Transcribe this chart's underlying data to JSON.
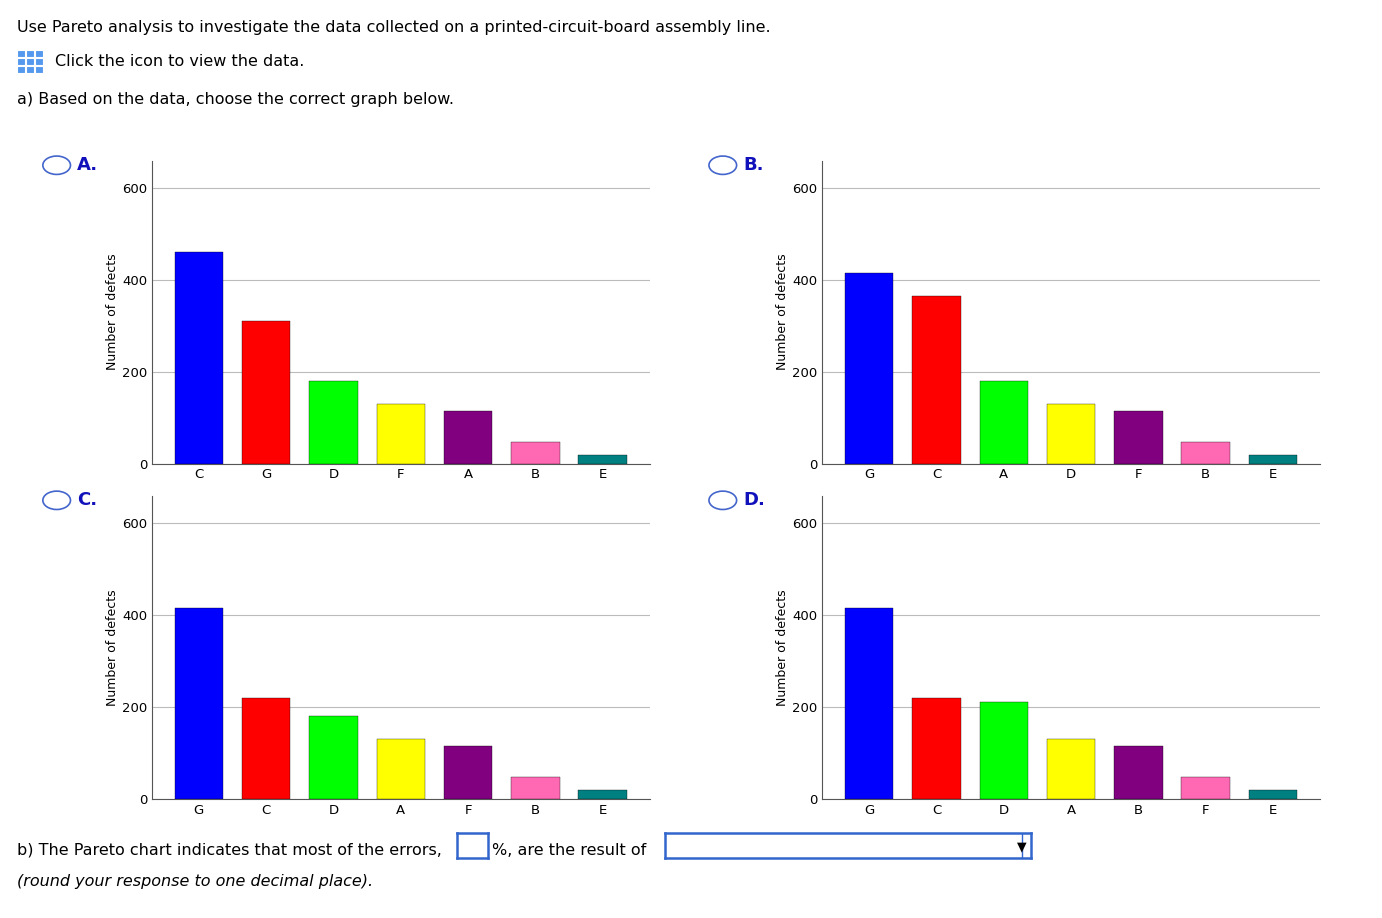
{
  "title_line1": "Use Pareto analysis to investigate the data collected on a printed-circuit-board assembly line.",
  "icon_text": "Click the icon to view the data.",
  "subtitle": "a) Based on the data, choose the correct graph below.",
  "bottom_text_1": "b) The Pareto chart indicates that most of the errors,",
  "bottom_text_2": "%, are the result of",
  "bottom_text_italic": "(round your response to one decimal place).",
  "charts": [
    {
      "label": "A.",
      "categories": [
        "C",
        "G",
        "D",
        "F",
        "A",
        "B",
        "E"
      ],
      "values": [
        460,
        310,
        180,
        130,
        115,
        48,
        18
      ],
      "colors": [
        "#0000FF",
        "#FF0000",
        "#00FF00",
        "#FFFF00",
        "#800080",
        "#FF69B4",
        "#008080"
      ]
    },
    {
      "label": "B.",
      "categories": [
        "G",
        "C",
        "A",
        "D",
        "F",
        "B",
        "E"
      ],
      "values": [
        415,
        365,
        180,
        130,
        115,
        48,
        18
      ],
      "colors": [
        "#0000FF",
        "#FF0000",
        "#00FF00",
        "#FFFF00",
        "#800080",
        "#FF69B4",
        "#008080"
      ]
    },
    {
      "label": "C.",
      "categories": [
        "G",
        "C",
        "D",
        "A",
        "F",
        "B",
        "E"
      ],
      "values": [
        415,
        220,
        180,
        130,
        115,
        48,
        18
      ],
      "colors": [
        "#0000FF",
        "#FF0000",
        "#00FF00",
        "#FFFF00",
        "#800080",
        "#FF69B4",
        "#008080"
      ]
    },
    {
      "label": "D.",
      "categories": [
        "G",
        "C",
        "D",
        "A",
        "B",
        "F",
        "E"
      ],
      "values": [
        415,
        220,
        210,
        130,
        115,
        48,
        18
      ],
      "colors": [
        "#0000FF",
        "#FF0000",
        "#00FF00",
        "#FFFF00",
        "#800080",
        "#FF69B4",
        "#008080"
      ]
    }
  ],
  "ylabel": "Number of defects",
  "ylim": [
    0,
    660
  ],
  "yticks": [
    0,
    200,
    400,
    600
  ],
  "background_color": "#FFFFFF",
  "grid_color": "#BBBBBB",
  "label_color": "#1111BB",
  "circle_color": "#4466CC",
  "box_border_color": "#3366CC",
  "dropdown_border_color": "#3366CC"
}
